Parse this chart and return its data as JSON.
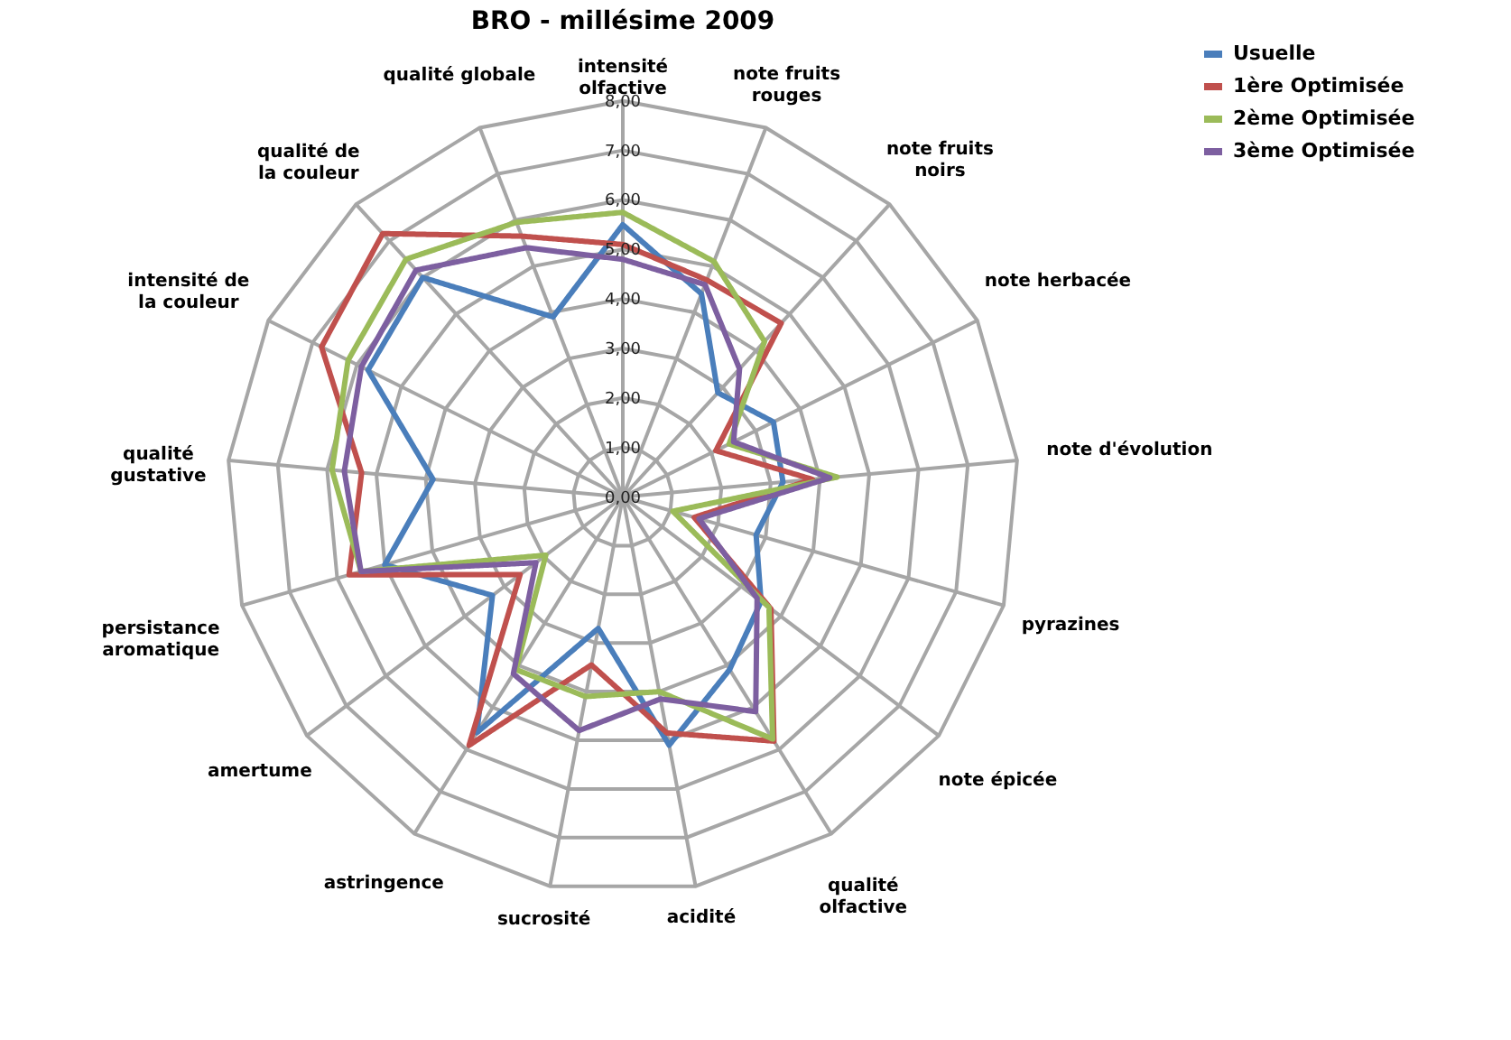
{
  "chart_data": {
    "type": "radar",
    "title": "BRO - millésime 2009",
    "categories": [
      "intensité olfactive",
      "note fruits rouges",
      "note fruits noirs",
      "note herbacée",
      "note d'évolution",
      "pyrazines",
      "note épicée",
      "qualité olfactive",
      "acidité",
      "sucrosité",
      "astringence",
      "amertume",
      "persistance aromatique",
      "qualité gustative",
      "intensité de la couleur",
      "qualité de la couleur",
      "qualité globale"
    ],
    "series": [
      {
        "name": "Usuelle",
        "color": "#4a7ebb",
        "values": [
          5.5,
          4.4,
          2.85,
          3.4,
          3.25,
          2.8,
          3.5,
          4.1,
          5.1,
          2.7,
          5.6,
          3.3,
          5.0,
          3.85,
          5.75,
          6.0,
          3.9
        ]
      },
      {
        "name": "1ère Optimisée",
        "color": "#c0504d",
        "values": [
          5.1,
          4.7,
          4.75,
          2.1,
          3.85,
          1.5,
          3.75,
          5.8,
          4.85,
          3.45,
          5.9,
          2.6,
          5.75,
          5.3,
          6.8,
          7.2,
          5.65
        ]
      },
      {
        "name": "2ème Optimisée",
        "color": "#9bbb59",
        "values": [
          5.75,
          5.1,
          4.25,
          2.4,
          4.35,
          1.05,
          3.7,
          5.75,
          4.0,
          4.1,
          4.1,
          1.95,
          5.5,
          5.9,
          6.2,
          6.5,
          5.95
        ]
      },
      {
        "name": "3ème Optimisée",
        "color": "#7d5fa0",
        "values": [
          4.8,
          4.6,
          3.5,
          2.5,
          4.2,
          1.6,
          3.4,
          5.1,
          4.15,
          4.8,
          4.2,
          2.2,
          5.5,
          5.65,
          5.9,
          6.2,
          5.4
        ]
      }
    ],
    "ylim": [
      0,
      8
    ],
    "yticks": [
      {
        "value": 0,
        "label": "0,00"
      },
      {
        "value": 1,
        "label": "1,00"
      },
      {
        "value": 2,
        "label": "2,00"
      },
      {
        "value": 3,
        "label": "3,00"
      },
      {
        "value": 4,
        "label": "4,00"
      },
      {
        "value": 5,
        "label": "5,00"
      },
      {
        "value": 6,
        "label": "6,00"
      },
      {
        "value": 7,
        "label": "7,00"
      },
      {
        "value": 8,
        "label": "8,00"
      }
    ],
    "grid": true,
    "legend": "top right",
    "marker": "none",
    "line_style": "solid"
  }
}
